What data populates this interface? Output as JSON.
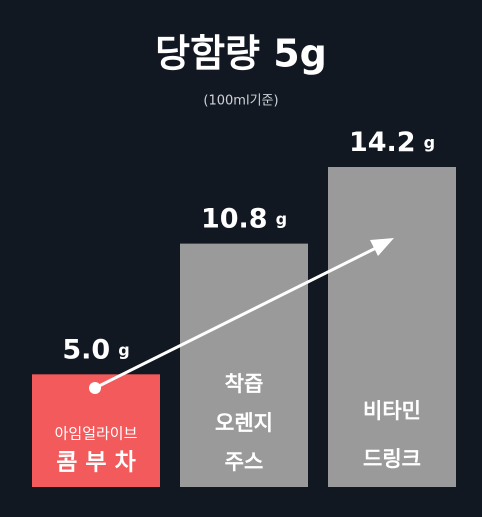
{
  "chart_data": {
    "type": "bar",
    "title": "당함량 5g",
    "subtitle": "(100ml기준)",
    "categories": [
      [
        "아임얼라이브",
        "콤 부 차"
      ],
      [
        "착즙",
        "오렌지",
        "주스"
      ],
      [
        "비타민",
        "드링크"
      ]
    ],
    "values": [
      5.0,
      10.8,
      14.2
    ],
    "value_labels": [
      "5.0 g",
      "10.8 g",
      "14.2 g"
    ],
    "colors": [
      "#f35a5c",
      "#9a9a9a",
      "#9a9a9a"
    ]
  }
}
